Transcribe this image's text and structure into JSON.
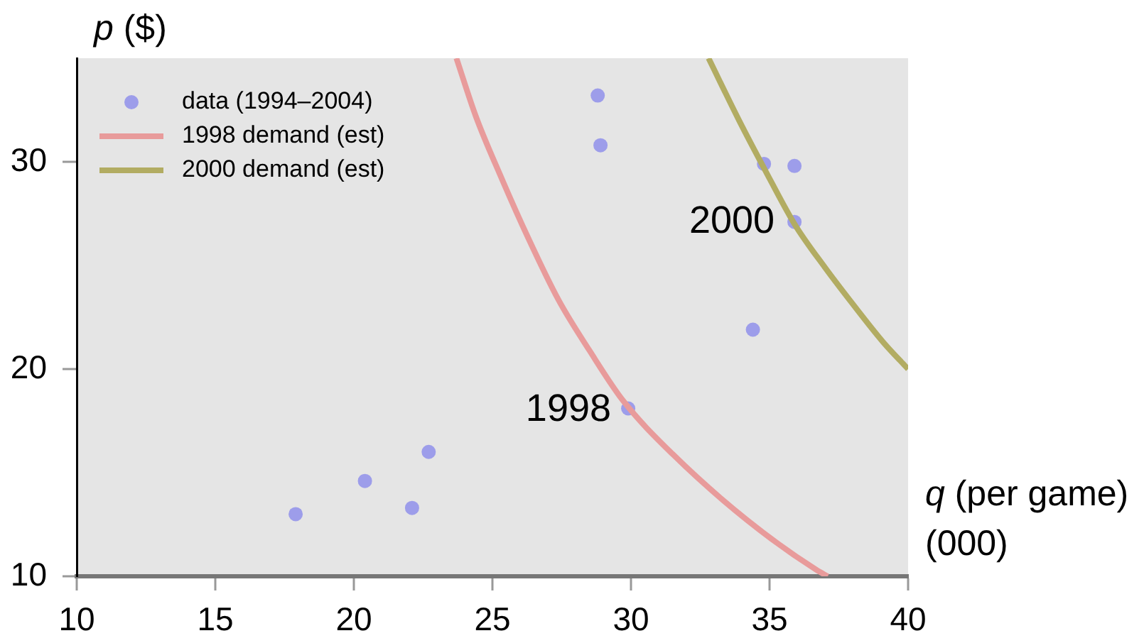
{
  "chart_data": {
    "type": "scatter",
    "xlabel": "q (per game) (000)",
    "ylabel": "p ($)",
    "xlim": [
      10,
      40
    ],
    "xticks": [
      10,
      15,
      20,
      25,
      30,
      35,
      40
    ],
    "ylim": [
      10,
      35
    ],
    "yticks": [
      10,
      20,
      30
    ],
    "legend": "top left",
    "series": [
      {
        "name": "data (1994–2004)",
        "marker": "circle",
        "color": "#9d9dea",
        "x": [
          17.9,
          20.4,
          22.1,
          22.7,
          28.8,
          28.9,
          29.9,
          34.4,
          34.8,
          35.9,
          35.9
        ],
        "values": [
          13.0,
          14.6,
          13.3,
          16.0,
          33.2,
          30.8,
          18.1,
          21.9,
          29.9,
          29.8,
          27.1
        ]
      },
      {
        "name": "1998 demand (est)",
        "type": "line",
        "marker": "none",
        "color": "#e89b9b",
        "x": [
          23.7,
          24.4,
          25.3,
          26.3,
          27.4,
          28.5,
          29.7,
          31.5,
          34.2,
          36.7,
          37.1
        ],
        "values": [
          35.0,
          32.2,
          29.3,
          26.3,
          23.3,
          20.9,
          18.5,
          15.9,
          12.7,
          10.3,
          10.0
        ]
      },
      {
        "name": "2000 demand (est)",
        "type": "line",
        "marker": "none",
        "color": "#b2ac62",
        "x": [
          32.8,
          33.9,
          34.8,
          35.9,
          37.0,
          38.2,
          39.1,
          40.0
        ],
        "values": [
          35.0,
          32.0,
          29.7,
          27.0,
          24.9,
          22.8,
          21.3,
          20.0
        ]
      }
    ],
    "annotations": [
      {
        "text": "1998",
        "x": 30.0,
        "y": 18.0
      },
      {
        "text": "2000",
        "x": 35.9,
        "y": 27.1
      }
    ]
  }
}
